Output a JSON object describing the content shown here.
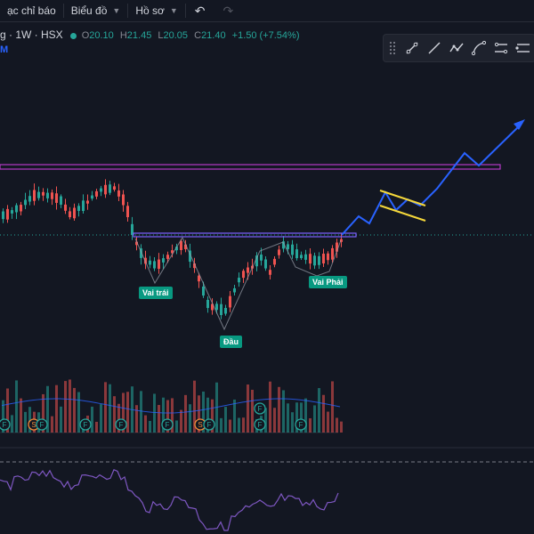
{
  "toolbar": {
    "indicators_label": "ạc chỉ báo",
    "chart_type_label": "Biểu đồ",
    "profile_label": "Hồ sơ",
    "undo_icon": "undo-icon",
    "redo_icon": "redo-icon"
  },
  "symbol": {
    "name": "g · 1W · HSX",
    "o_key": "O",
    "o_val": "20.10",
    "h_key": "H",
    "h_val": "21.45",
    "l_key": "L",
    "l_val": "20.05",
    "c_key": "C",
    "c_val": "21.40",
    "change": "+1.50 (+7.54%)",
    "m_label": "M",
    "status_color": "#26a69a"
  },
  "drawing_toolbar": {
    "tools": [
      "trend-line-icon",
      "line-icon",
      "path-icon",
      "curve-icon",
      "ranges-icon",
      "ruler-icon"
    ]
  },
  "annotations": {
    "left_shoulder": "Vai trái",
    "head": "Đầu",
    "right_shoulder": "Vai Phải"
  },
  "colors": {
    "background": "#131722",
    "up": "#26a69a",
    "down": "#ef5350",
    "neckline": "#7b61ff",
    "resistance": "#b339c6",
    "projection": "#2962ff",
    "flag": "#f5d83a",
    "badge": "#089981",
    "rsi": "#7e57c2"
  }
}
